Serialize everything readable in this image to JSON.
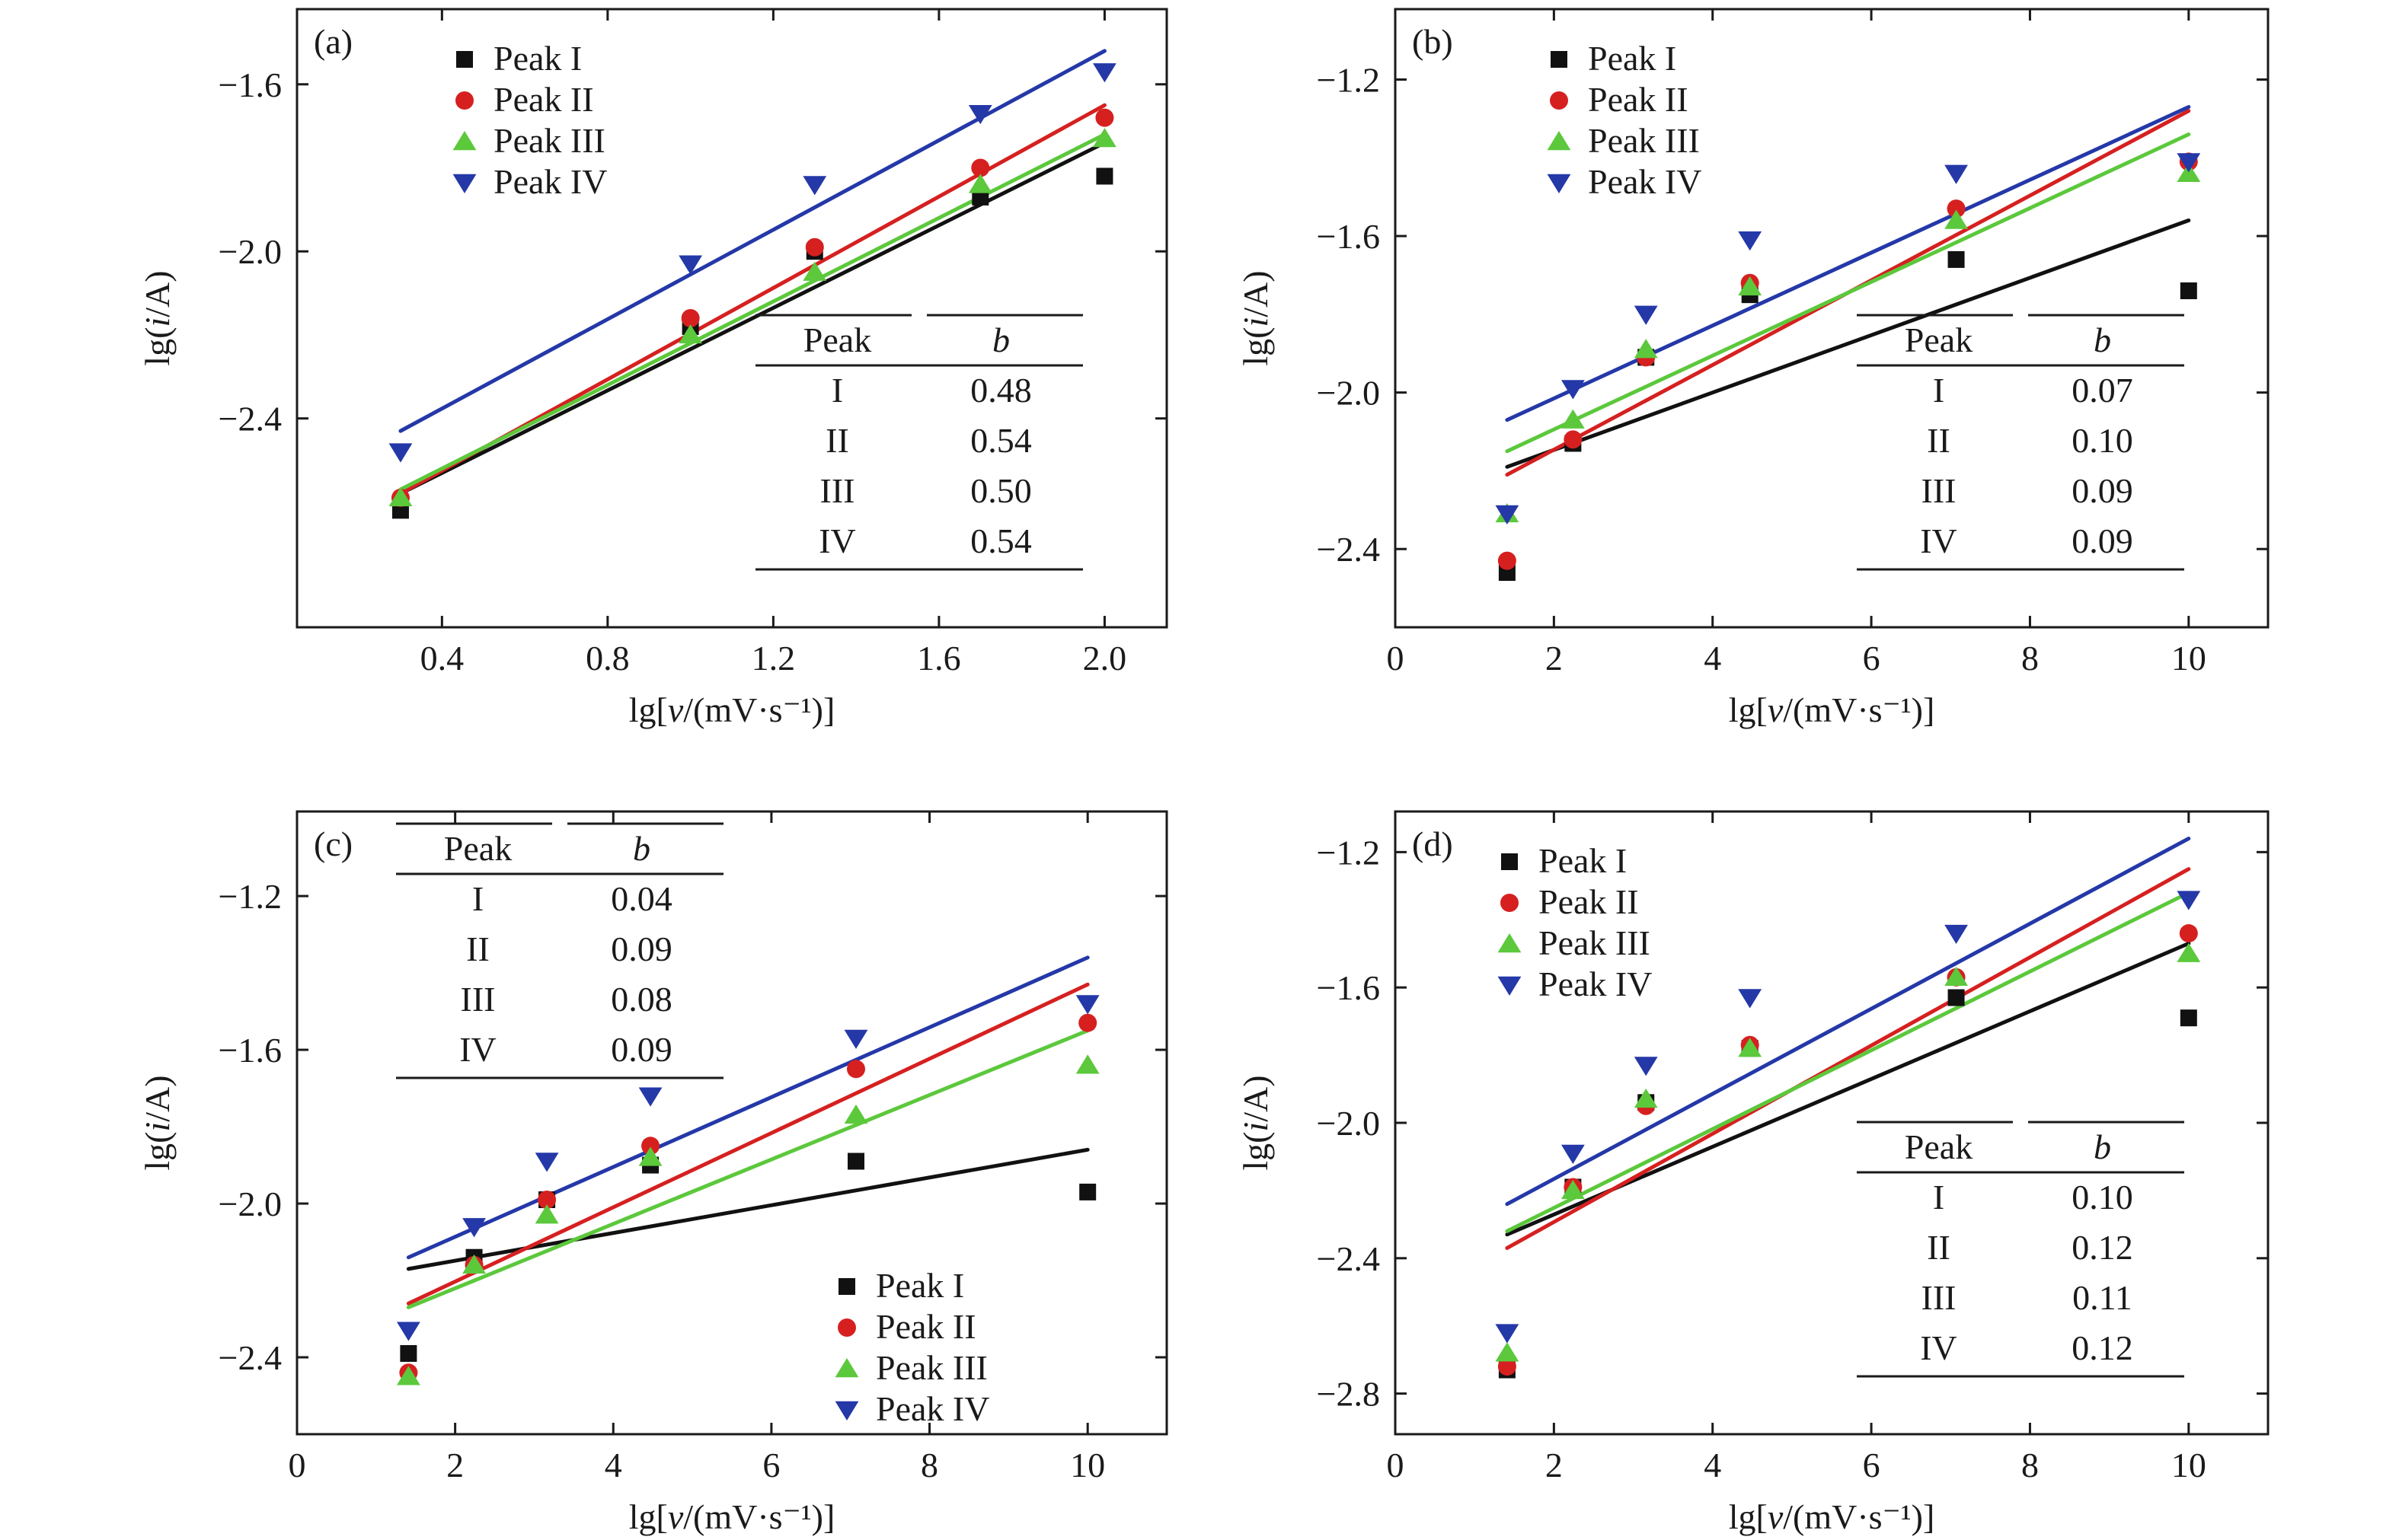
{
  "colors": {
    "Peak I": "#111111",
    "Peak II": "#d62020",
    "Peak III": "#5cc83c",
    "Peak IV": "#2438a8"
  },
  "markers": {
    "Peak I": "square",
    "Peak II": "circle",
    "Peak III": "triangle-up",
    "Peak IV": "triangle-down"
  },
  "table_header": {
    "peak": "Peak",
    "b": "b"
  },
  "chart_data": [
    {
      "panel": "(a)",
      "type": "scatter",
      "xlabel": "lg[v/(mV·s⁻¹)]",
      "ylabel": "lg(i/A)",
      "xlim": [
        0.05,
        2.15
      ],
      "ylim": [
        -2.9,
        -1.42
      ],
      "xticks": [
        0.4,
        0.8,
        1.2,
        1.6,
        2.0
      ],
      "xticklabels": [
        "0.4",
        "0.8",
        "1.2",
        "1.6",
        "2.0"
      ],
      "yticks": [
        -2.4,
        -2.0,
        -1.6
      ],
      "yticklabels": [
        "−2.4",
        "−2.0",
        "−1.6"
      ],
      "legend": "top-left",
      "series": [
        {
          "name": "Peak I",
          "x": [
            0.3,
            1.0,
            1.3,
            1.7,
            2.0
          ],
          "y": [
            -2.62,
            -2.18,
            -2.0,
            -1.87,
            -1.82
          ],
          "fit": [
            [
              0.3,
              -2.58
            ],
            [
              2.0,
              -1.74
            ]
          ]
        },
        {
          "name": "Peak II",
          "x": [
            0.3,
            1.0,
            1.3,
            1.7,
            2.0
          ],
          "y": [
            -2.59,
            -2.16,
            -1.99,
            -1.8,
            -1.68
          ],
          "fit": [
            [
              0.3,
              -2.58
            ],
            [
              2.0,
              -1.65
            ]
          ]
        },
        {
          "name": "Peak III",
          "x": [
            0.3,
            1.0,
            1.3,
            1.7,
            2.0
          ],
          "y": [
            -2.59,
            -2.2,
            -2.05,
            -1.84,
            -1.73
          ],
          "fit": [
            [
              0.3,
              -2.57
            ],
            [
              2.0,
              -1.72
            ]
          ]
        },
        {
          "name": "Peak IV",
          "x": [
            0.3,
            1.0,
            1.3,
            1.7,
            2.0
          ],
          "y": [
            -2.48,
            -2.03,
            -1.84,
            -1.67,
            -1.57
          ],
          "fit": [
            [
              0.3,
              -2.43
            ],
            [
              2.0,
              -1.52
            ]
          ]
        }
      ],
      "table": {
        "position": "bottom-right",
        "rows": [
          {
            "peak": "I",
            "b": "0.48"
          },
          {
            "peak": "II",
            "b": "0.54"
          },
          {
            "peak": "III",
            "b": "0.50"
          },
          {
            "peak": "IV",
            "b": "0.54"
          }
        ]
      }
    },
    {
      "panel": "(b)",
      "type": "scatter",
      "xlabel": "lg[v/(mV·s⁻¹)]",
      "ylabel": "lg(i/A)",
      "xlim": [
        0,
        11
      ],
      "ylim": [
        -2.6,
        -1.02
      ],
      "xticks": [
        0,
        2,
        4,
        6,
        8,
        10
      ],
      "xticklabels": [
        "0",
        "2",
        "4",
        "6",
        "8",
        "10"
      ],
      "yticks": [
        -2.4,
        -2.0,
        -1.6,
        -1.2
      ],
      "yticklabels": [
        "−2.4",
        "−2.0",
        "−1.6",
        "−1.2"
      ],
      "legend": "top-left",
      "series": [
        {
          "name": "Peak I",
          "x": [
            1.41,
            2.24,
            3.16,
            4.47,
            7.07,
            10.0
          ],
          "y": [
            -2.46,
            -2.13,
            -1.91,
            -1.75,
            -1.66,
            -1.74
          ],
          "fit": [
            [
              1.41,
              -2.19
            ],
            [
              10.0,
              -1.56
            ]
          ]
        },
        {
          "name": "Peak II",
          "x": [
            1.41,
            2.24,
            3.16,
            4.47,
            7.07,
            10.0
          ],
          "y": [
            -2.43,
            -2.12,
            -1.91,
            -1.72,
            -1.53,
            -1.41
          ],
          "fit": [
            [
              1.41,
              -2.21
            ],
            [
              10.0,
              -1.28
            ]
          ]
        },
        {
          "name": "Peak III",
          "x": [
            1.41,
            2.24,
            3.16,
            4.47,
            7.07,
            10.0
          ],
          "y": [
            -2.31,
            -2.07,
            -1.89,
            -1.73,
            -1.56,
            -1.44
          ],
          "fit": [
            [
              1.41,
              -2.15
            ],
            [
              10.0,
              -1.34
            ]
          ]
        },
        {
          "name": "Peak IV",
          "x": [
            1.41,
            2.24,
            3.16,
            4.47,
            7.07,
            10.0
          ],
          "y": [
            -2.31,
            -1.99,
            -1.8,
            -1.61,
            -1.44,
            -1.41
          ],
          "fit": [
            [
              1.41,
              -2.07
            ],
            [
              10.0,
              -1.27
            ]
          ]
        }
      ],
      "table": {
        "position": "bottom-right",
        "rows": [
          {
            "peak": "I",
            "b": "0.07"
          },
          {
            "peak": "II",
            "b": "0.10"
          },
          {
            "peak": "III",
            "b": "0.09"
          },
          {
            "peak": "IV",
            "b": "0.09"
          }
        ]
      }
    },
    {
      "panel": "(c)",
      "type": "scatter",
      "xlabel": "lg[v/(mV·s⁻¹)]",
      "ylabel": "lg(i/A)",
      "xlim": [
        0,
        11
      ],
      "ylim": [
        -2.6,
        -0.98
      ],
      "xticks": [
        0,
        2,
        4,
        6,
        8,
        10
      ],
      "xticklabels": [
        "0",
        "2",
        "4",
        "6",
        "8",
        "10"
      ],
      "yticks": [
        -2.4,
        -2.0,
        -1.6,
        -1.2
      ],
      "yticklabels": [
        "−2.4",
        "−2.0",
        "−1.6",
        "−1.2"
      ],
      "legend": "bottom-right",
      "series": [
        {
          "name": "Peak I",
          "x": [
            1.41,
            2.24,
            3.16,
            4.47,
            7.07,
            10.0
          ],
          "y": [
            -2.39,
            -2.14,
            -1.99,
            -1.9,
            -1.89,
            -1.97
          ],
          "fit": [
            [
              1.41,
              -2.17
            ],
            [
              10.0,
              -1.86
            ]
          ]
        },
        {
          "name": "Peak II",
          "x": [
            1.41,
            2.24,
            3.16,
            4.47,
            7.07,
            10.0
          ],
          "y": [
            -2.44,
            -2.16,
            -1.99,
            -1.85,
            -1.65,
            -1.53
          ],
          "fit": [
            [
              1.41,
              -2.26
            ],
            [
              10.0,
              -1.43
            ]
          ]
        },
        {
          "name": "Peak III",
          "x": [
            1.41,
            2.24,
            3.16,
            4.47,
            7.07,
            10.0
          ],
          "y": [
            -2.45,
            -2.16,
            -2.03,
            -1.88,
            -1.77,
            -1.64
          ],
          "fit": [
            [
              1.41,
              -2.27
            ],
            [
              10.0,
              -1.55
            ]
          ]
        },
        {
          "name": "Peak IV",
          "x": [
            1.41,
            2.24,
            3.16,
            4.47,
            7.07,
            10.0
          ],
          "y": [
            -2.33,
            -2.06,
            -1.89,
            -1.72,
            -1.57,
            -1.48
          ],
          "fit": [
            [
              1.41,
              -2.14
            ],
            [
              10.0,
              -1.36
            ]
          ]
        }
      ],
      "table": {
        "position": "top-left",
        "rows": [
          {
            "peak": "I",
            "b": "0.04"
          },
          {
            "peak": "II",
            "b": "0.09"
          },
          {
            "peak": "III",
            "b": "0.08"
          },
          {
            "peak": "IV",
            "b": "0.09"
          }
        ]
      }
    },
    {
      "panel": "(d)",
      "type": "scatter",
      "xlabel": "lg[v/(mV·s⁻¹)]",
      "ylabel": "lg(i/A)",
      "xlim": [
        0,
        11
      ],
      "ylim": [
        -2.92,
        -1.08
      ],
      "xticks": [
        0,
        2,
        4,
        6,
        8,
        10
      ],
      "xticklabels": [
        "0",
        "2",
        "4",
        "6",
        "8",
        "10"
      ],
      "yticks": [
        -2.8,
        -2.4,
        -2.0,
        -1.6,
        -1.2
      ],
      "yticklabels": [
        "−2.8",
        "−2.4",
        "−2.0",
        "−1.6",
        "−1.2"
      ],
      "legend": "top-left",
      "series": [
        {
          "name": "Peak I",
          "x": [
            1.41,
            2.24,
            3.16,
            4.47,
            7.07,
            10.0
          ],
          "y": [
            -2.73,
            -2.19,
            -1.94,
            -1.78,
            -1.63,
            -1.69
          ],
          "fit": [
            [
              1.41,
              -2.33
            ],
            [
              10.0,
              -1.47
            ]
          ]
        },
        {
          "name": "Peak II",
          "x": [
            1.41,
            2.24,
            3.16,
            4.47,
            7.07,
            10.0
          ],
          "y": [
            -2.72,
            -2.19,
            -1.95,
            -1.77,
            -1.57,
            -1.44
          ],
          "fit": [
            [
              1.41,
              -2.37
            ],
            [
              10.0,
              -1.25
            ]
          ]
        },
        {
          "name": "Peak III",
          "x": [
            1.41,
            2.24,
            3.16,
            4.47,
            7.07,
            10.0
          ],
          "y": [
            -2.68,
            -2.2,
            -1.93,
            -1.78,
            -1.57,
            -1.5
          ],
          "fit": [
            [
              1.41,
              -2.32
            ],
            [
              10.0,
              -1.32
            ]
          ]
        },
        {
          "name": "Peak IV",
          "x": [
            1.41,
            2.24,
            3.16,
            4.47,
            7.07,
            10.0
          ],
          "y": [
            -2.62,
            -2.09,
            -1.83,
            -1.63,
            -1.44,
            -1.34
          ],
          "fit": [
            [
              1.41,
              -2.24
            ],
            [
              10.0,
              -1.16
            ]
          ]
        }
      ],
      "table": {
        "position": "bottom-right",
        "rows": [
          {
            "peak": "I",
            "b": "0.10"
          },
          {
            "peak": "II",
            "b": "0.12"
          },
          {
            "peak": "III",
            "b": "0.11"
          },
          {
            "peak": "IV",
            "b": "0.12"
          }
        ]
      }
    }
  ]
}
